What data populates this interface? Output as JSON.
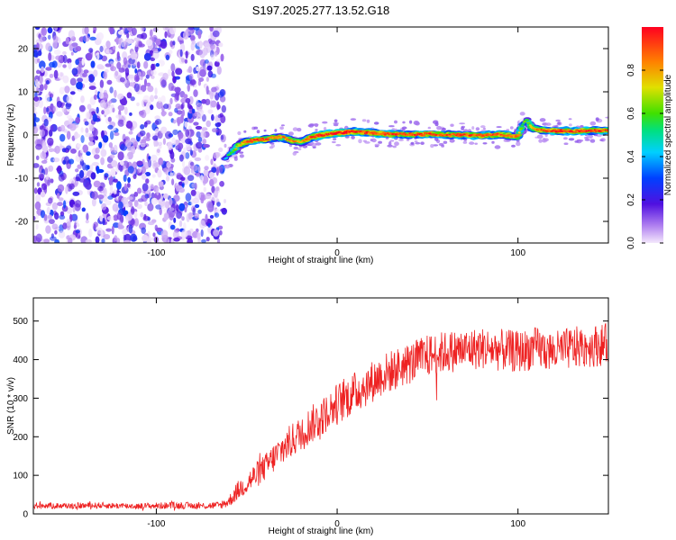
{
  "title": "S197.2025.277.13.52.G18",
  "chart_data": [
    {
      "type": "heatmap",
      "xlabel": "Height of straight line (km)",
      "ylabel": "Frequency (Hz)",
      "xlim": [
        -168,
        150
      ],
      "ylim": [
        -25,
        25
      ],
      "xticks": [
        -100,
        0,
        100
      ],
      "yticks": [
        -20,
        -10,
        0,
        10,
        20
      ],
      "colorbar": {
        "label": "Normalized spectral amplitude",
        "range": [
          0.0,
          1.0
        ],
        "ticks": [
          "0.0",
          "0.2",
          "0.4",
          "0.6",
          "0.8"
        ],
        "tick_values": [
          0.0,
          0.2,
          0.4,
          0.6,
          0.8
        ]
      },
      "noise_region": {
        "x_range": [
          -168,
          -62
        ],
        "freq_range": [
          -25,
          25
        ],
        "amplitude": [
          0.0,
          0.3
        ]
      },
      "signal_ridge": {
        "x": [
          -62,
          -58,
          -55,
          -50,
          -45,
          -40,
          -35,
          -30,
          -25,
          -20,
          -15,
          -10,
          -5,
          0,
          10,
          20,
          30,
          40,
          50,
          60,
          70,
          80,
          90,
          100,
          103,
          105,
          108,
          115,
          130,
          150
        ],
        "frequency_hz": [
          -5.5,
          -4.0,
          -2.5,
          -1.5,
          -1.2,
          -1.0,
          -0.6,
          -0.6,
          -1.3,
          -1.6,
          -0.6,
          -0.1,
          0.2,
          0.5,
          0.8,
          0.4,
          0.2,
          0.1,
          0.2,
          0.1,
          0.0,
          -0.1,
          0.1,
          -0.4,
          2.8,
          3.5,
          1.5,
          1.0,
          0.9,
          1.1
        ],
        "amplitude": [
          0.4,
          0.6,
          0.75,
          0.85,
          0.9,
          0.9,
          0.8,
          0.85,
          0.8,
          0.8,
          0.9,
          0.95,
          0.95,
          0.98,
          0.95,
          0.9,
          0.9,
          0.9,
          0.92,
          0.9,
          0.9,
          0.9,
          0.9,
          0.85,
          0.6,
          0.5,
          0.8,
          0.9,
          0.92,
          0.9
        ]
      }
    },
    {
      "type": "line",
      "xlabel": "Height of straight line (km)",
      "ylabel": "SNR (10 * v/v)",
      "xlim": [
        -168,
        150
      ],
      "ylim": [
        0,
        560
      ],
      "xticks": [
        -100,
        0,
        100
      ],
      "yticks": [
        0,
        100,
        200,
        300,
        400,
        500
      ],
      "series": [
        {
          "name": "SNR",
          "color": "#ee2222",
          "x": [
            -168,
            -150,
            -130,
            -110,
            -90,
            -75,
            -65,
            -60,
            -55,
            -50,
            -45,
            -40,
            -35,
            -30,
            -25,
            -20,
            -15,
            -10,
            -5,
            0,
            5,
            10,
            15,
            20,
            25,
            30,
            40,
            50,
            60,
            70,
            80,
            90,
            100,
            110,
            120,
            130,
            140,
            150
          ],
          "mean": [
            22,
            21,
            22,
            20,
            22,
            21,
            22,
            32,
            60,
            80,
            100,
            120,
            145,
            170,
            190,
            210,
            230,
            245,
            265,
            285,
            300,
            315,
            330,
            345,
            360,
            370,
            390,
            410,
            420,
            425,
            430,
            425,
            420,
            430,
            420,
            430,
            435,
            440
          ],
          "spread": [
            8,
            8,
            8,
            8,
            9,
            9,
            10,
            15,
            25,
            30,
            35,
            35,
            40,
            45,
            45,
            45,
            50,
            50,
            50,
            55,
            55,
            55,
            55,
            55,
            55,
            55,
            55,
            55,
            55,
            55,
            55,
            55,
            55,
            55,
            55,
            55,
            55,
            55
          ]
        }
      ]
    }
  ]
}
